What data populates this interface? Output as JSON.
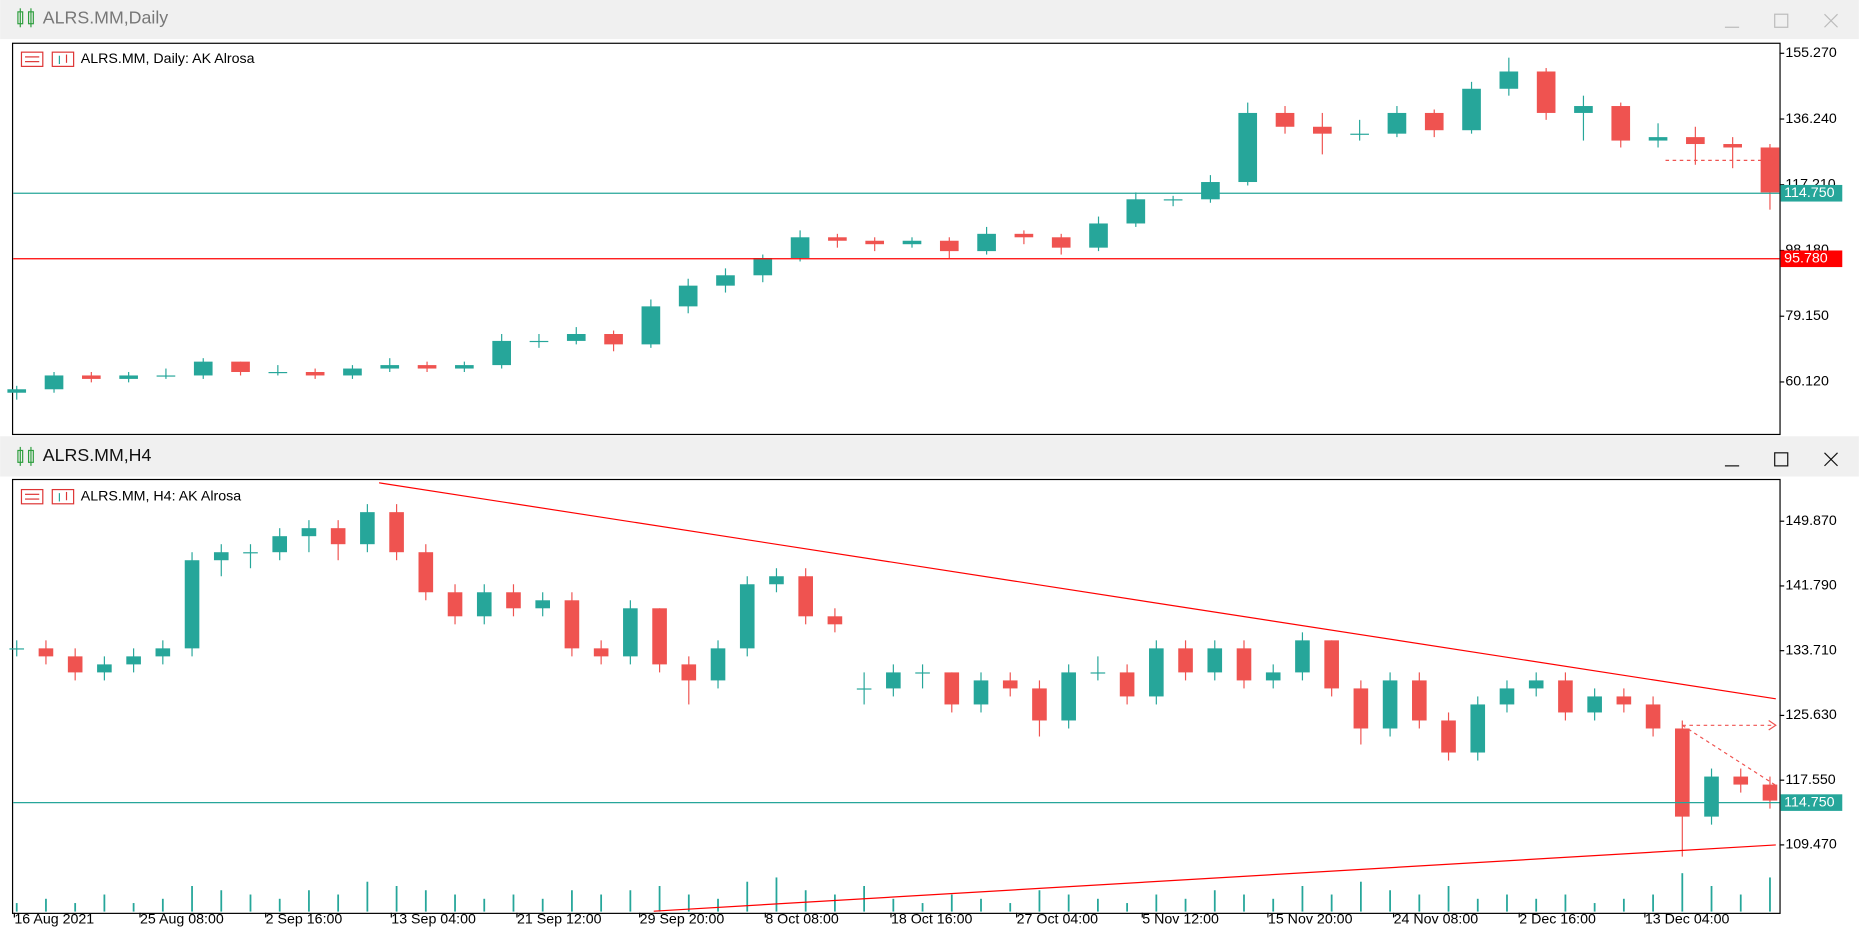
{
  "chart_data": [
    {
      "type": "candlestick",
      "window_title": "ALRS.MM,Daily",
      "label": "ALRS.MM, Daily:  AK Alrosa",
      "up_color": "#26a69a",
      "down_color": "#ef5350",
      "xlim": [
        0,
        47
      ],
      "ylim": [
        45.09,
        158.0
      ],
      "yticks": [
        {
          "value": 155.27,
          "label": "155.270"
        },
        {
          "value": 136.24,
          "label": "136.240"
        },
        {
          "value": 117.21,
          "label": "117.210"
        },
        {
          "value": 98.18,
          "label": "98.180"
        },
        {
          "value": 79.15,
          "label": "79.150"
        },
        {
          "value": 60.12,
          "label": "60.120"
        }
      ],
      "hlines": [
        {
          "value": 114.75,
          "label": "114.750",
          "color": "#26a69a"
        },
        {
          "value": 95.78,
          "label": "95.780",
          "color": "#ff0000"
        }
      ],
      "trendlines": [
        {
          "from": [
            44.2,
            124.26
          ],
          "to": [
            47.2,
            124.26
          ],
          "color": "#ef5350",
          "dash": true,
          "arrow": true
        }
      ],
      "candles": [
        [
          57,
          59,
          55,
          58
        ],
        [
          58,
          63,
          57,
          62
        ],
        [
          62,
          63,
          60,
          61
        ],
        [
          61,
          63,
          60,
          62
        ],
        [
          62,
          64,
          61,
          62
        ],
        [
          62,
          67,
          61,
          66
        ],
        [
          66,
          66,
          62,
          63
        ],
        [
          63,
          65,
          62,
          63
        ],
        [
          63,
          64,
          61,
          62
        ],
        [
          62,
          65,
          61,
          64
        ],
        [
          64,
          67,
          63,
          65
        ],
        [
          65,
          66,
          63,
          64
        ],
        [
          64,
          66,
          63,
          65
        ],
        [
          65,
          74,
          64,
          72
        ],
        [
          72,
          74,
          70,
          72
        ],
        [
          72,
          76,
          71,
          74
        ],
        [
          74,
          75,
          69,
          71
        ],
        [
          71,
          84,
          70,
          82
        ],
        [
          82,
          90,
          80,
          88
        ],
        [
          88,
          93,
          86,
          91
        ],
        [
          91,
          97,
          89,
          96
        ],
        [
          96,
          104,
          95,
          102
        ],
        [
          102,
          103,
          99,
          101
        ],
        [
          101,
          102,
          98,
          100
        ],
        [
          100,
          102,
          99,
          101
        ],
        [
          101,
          102,
          96,
          98
        ],
        [
          98,
          105,
          97,
          103
        ],
        [
          103,
          104,
          100,
          102
        ],
        [
          102,
          103,
          97,
          99
        ],
        [
          99,
          108,
          98,
          106
        ],
        [
          106,
          115,
          105,
          113
        ],
        [
          113,
          114,
          111,
          113
        ],
        [
          113,
          120,
          112,
          118
        ],
        [
          118,
          141,
          117,
          138
        ],
        [
          138,
          140,
          132,
          134
        ],
        [
          134,
          138,
          126,
          132
        ],
        [
          132,
          136,
          130,
          132
        ],
        [
          132,
          140,
          131,
          138
        ],
        [
          138,
          139,
          131,
          133
        ],
        [
          133,
          147,
          132,
          145
        ],
        [
          145,
          154,
          143,
          150
        ],
        [
          150,
          151,
          136,
          138
        ],
        [
          138,
          143,
          130,
          140
        ],
        [
          140,
          141,
          128,
          130
        ],
        [
          130,
          135,
          128,
          131
        ],
        [
          131,
          134,
          123,
          129
        ],
        [
          129,
          131,
          122,
          128
        ],
        [
          128,
          129,
          110,
          115
        ]
      ]
    },
    {
      "type": "candlestick",
      "window_title": "ALRS.MM,H4",
      "label": "ALRS.MM, H4:  AK Alrosa",
      "up_color": "#26a69a",
      "down_color": "#ef5350",
      "xlim": [
        0,
        60
      ],
      "ylim": [
        101.0,
        155.0
      ],
      "yticks": [
        {
          "value": 149.87,
          "label": "149.870"
        },
        {
          "value": 141.79,
          "label": "141.790"
        },
        {
          "value": 133.71,
          "label": "133.710"
        },
        {
          "value": 125.63,
          "label": "125.630"
        },
        {
          "value": 117.55,
          "label": "117.550"
        },
        {
          "value": 109.47,
          "label": "109.470"
        }
      ],
      "xticks": [
        {
          "value": 0,
          "label": "16 Aug 2021"
        },
        {
          "value": 4.3,
          "label": "25 Aug 08:00"
        },
        {
          "value": 8.6,
          "label": "2 Sep 16:00"
        },
        {
          "value": 12.9,
          "label": "13 Sep 04:00"
        },
        {
          "value": 17.2,
          "label": "21 Sep 12:00"
        },
        {
          "value": 21.4,
          "label": "29 Sep 20:00"
        },
        {
          "value": 25.7,
          "label": "8 Oct 08:00"
        },
        {
          "value": 30,
          "label": "18 Oct 16:00"
        },
        {
          "value": 34.3,
          "label": "27 Oct 04:00"
        },
        {
          "value": 38.6,
          "label": "5 Nov 12:00"
        },
        {
          "value": 42.9,
          "label": "15 Nov 20:00"
        },
        {
          "value": 47.2,
          "label": "24 Nov 08:00"
        },
        {
          "value": 51.5,
          "label": "2 Dec 16:00"
        },
        {
          "value": 55.8,
          "label": "13 Dec 04:00"
        }
      ],
      "hlines": [
        {
          "value": 114.75,
          "label": "114.750",
          "color": "#26a69a"
        }
      ],
      "trendlines": [
        {
          "from": [
            12.4,
            154.66
          ],
          "to": [
            60.2,
            127.7
          ],
          "color": "#ff0000",
          "dash": false,
          "arrow": false
        },
        {
          "from": [
            21.8,
            101.2
          ],
          "to": [
            60.2,
            109.47
          ],
          "color": "#ff0000",
          "dash": false,
          "arrow": false
        },
        {
          "from": [
            57,
            124.4
          ],
          "to": [
            60.2,
            124.4
          ],
          "color": "#ef5350",
          "dash": true,
          "arrow": true
        },
        {
          "from": [
            57,
            124.4
          ],
          "to": [
            60.2,
            116.9
          ],
          "color": "#ef5350",
          "dash": true,
          "arrow": false
        }
      ],
      "vlim": [
        0,
        10
      ],
      "volumes": [
        2,
        3,
        2,
        4,
        2,
        3,
        6,
        5,
        4,
        3,
        5,
        4,
        7,
        6,
        5,
        4,
        3,
        4,
        3,
        5,
        4,
        5,
        6,
        4,
        3,
        7,
        8,
        5,
        4,
        6,
        3,
        2,
        4,
        3,
        2,
        5,
        4,
        3,
        2,
        4,
        3,
        5,
        4,
        3,
        6,
        4,
        7,
        5,
        4,
        6,
        3,
        4,
        3,
        4,
        2,
        3,
        4,
        9,
        6,
        4,
        8
      ],
      "candles": [
        [
          134,
          135,
          133,
          134
        ],
        [
          134,
          135,
          132,
          133
        ],
        [
          133,
          134,
          130,
          131
        ],
        [
          131,
          133,
          130,
          132
        ],
        [
          132,
          134,
          131,
          133
        ],
        [
          133,
          135,
          132,
          134
        ],
        [
          134,
          146,
          133,
          145
        ],
        [
          145,
          147,
          143,
          146
        ],
        [
          146,
          147,
          144,
          146
        ],
        [
          146,
          149,
          145,
          148
        ],
        [
          148,
          150,
          146,
          149
        ],
        [
          149,
          150,
          145,
          147
        ],
        [
          147,
          152,
          146,
          151
        ],
        [
          151,
          152,
          145,
          146
        ],
        [
          146,
          147,
          140,
          141
        ],
        [
          141,
          142,
          137,
          138
        ],
        [
          138,
          142,
          137,
          141
        ],
        [
          141,
          142,
          138,
          139
        ],
        [
          139,
          141,
          138,
          140
        ],
        [
          140,
          141,
          133,
          134
        ],
        [
          134,
          135,
          132,
          133
        ],
        [
          133,
          140,
          132,
          139
        ],
        [
          139,
          139,
          131,
          132
        ],
        [
          132,
          133,
          127,
          130
        ],
        [
          130,
          135,
          129,
          134
        ],
        [
          134,
          143,
          133,
          142
        ],
        [
          142,
          144,
          141,
          143
        ],
        [
          143,
          144,
          137,
          138
        ],
        [
          138,
          139,
          136,
          137
        ],
        [
          129,
          131,
          127,
          129
        ],
        [
          129,
          132,
          128,
          131
        ],
        [
          131,
          132,
          129,
          131
        ],
        [
          131,
          131,
          126,
          127
        ],
        [
          127,
          131,
          126,
          130
        ],
        [
          130,
          131,
          128,
          129
        ],
        [
          129,
          130,
          123,
          125
        ],
        [
          125,
          132,
          124,
          131
        ],
        [
          131,
          133,
          130,
          131
        ],
        [
          131,
          132,
          127,
          128
        ],
        [
          128,
          135,
          127,
          134
        ],
        [
          134,
          135,
          130,
          131
        ],
        [
          131,
          135,
          130,
          134
        ],
        [
          134,
          135,
          129,
          130
        ],
        [
          130,
          132,
          129,
          131
        ],
        [
          131,
          136,
          130,
          135
        ],
        [
          135,
          135,
          128,
          129
        ],
        [
          129,
          130,
          122,
          124
        ],
        [
          124,
          131,
          123,
          130
        ],
        [
          130,
          131,
          124,
          125
        ],
        [
          125,
          126,
          120,
          121
        ],
        [
          121,
          128,
          120,
          127
        ],
        [
          127,
          130,
          126,
          129
        ],
        [
          129,
          131,
          128,
          130
        ],
        [
          130,
          131,
          125,
          126
        ],
        [
          126,
          129,
          125,
          128
        ],
        [
          128,
          129,
          126,
          127
        ],
        [
          127,
          128,
          123,
          124
        ],
        [
          124,
          125,
          108,
          113
        ],
        [
          113,
          119,
          112,
          118
        ],
        [
          118,
          119,
          116,
          117
        ],
        [
          117,
          118,
          114,
          115
        ]
      ]
    }
  ]
}
